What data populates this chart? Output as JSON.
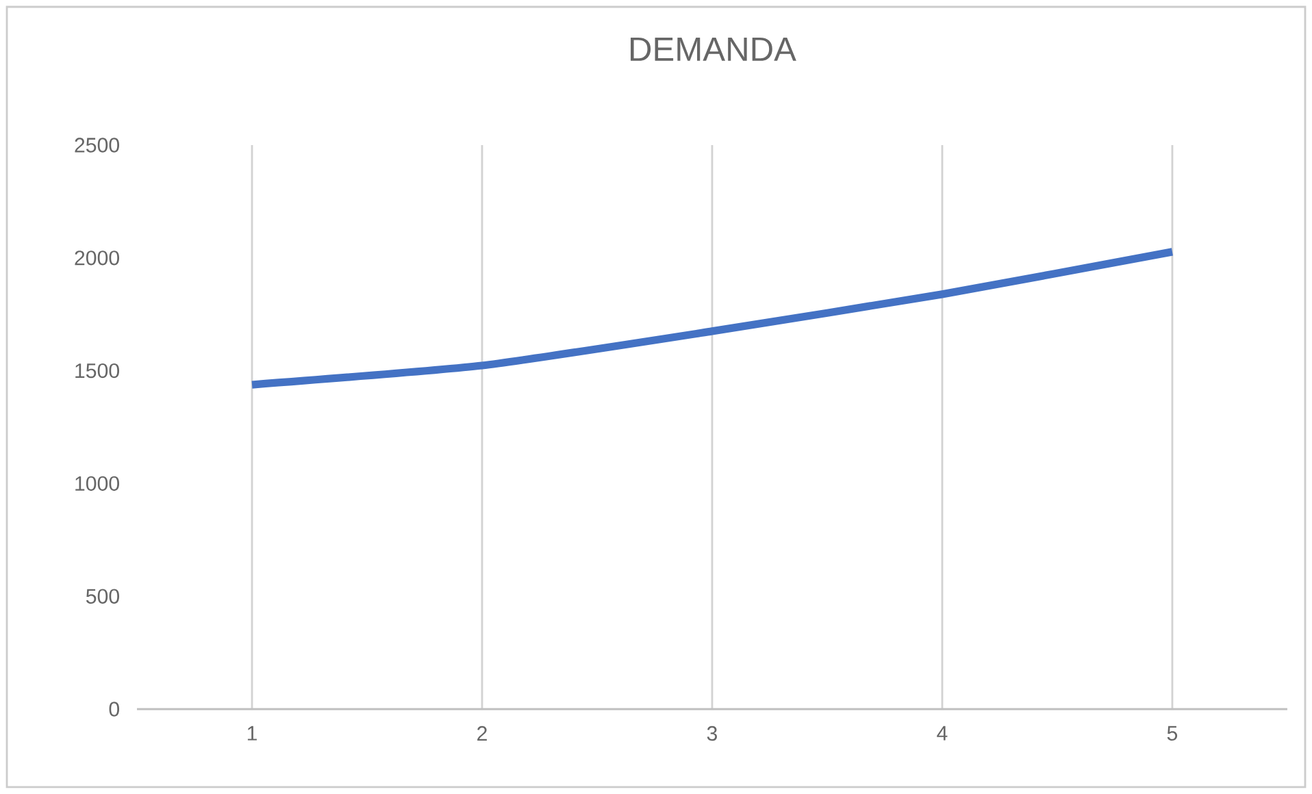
{
  "chart_data": {
    "type": "line",
    "title": "DEMANDA",
    "categories": [
      "1",
      "2",
      "3",
      "4",
      "5"
    ],
    "values": [
      1438,
      1523,
      1675,
      1839,
      2027
    ],
    "color": "#4472c4",
    "ylim": [
      0,
      2500
    ],
    "yticks": [
      0,
      500,
      1000,
      1500,
      2000,
      2500
    ],
    "grid": "x"
  }
}
